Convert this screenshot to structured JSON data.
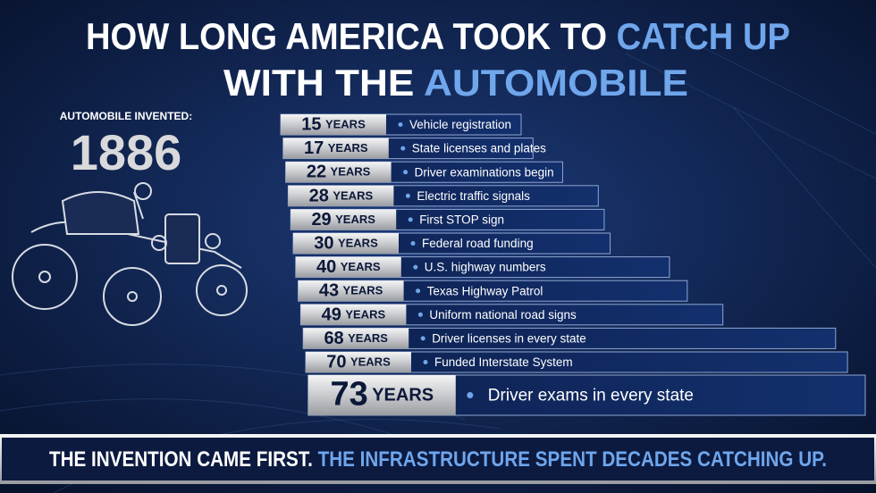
{
  "title": {
    "line1": "HOW LONG AMERICA TOOK TO",
    "line1_highlight": "CATCH UP",
    "line2": "WITH THE",
    "line2_highlight": "AUTOMOBILE"
  },
  "invented": {
    "label": "AUTOMOBILE INVENTED:",
    "year": 1886
  },
  "unit": "YEARS",
  "items": [
    {
      "years": 15,
      "event": "Vehicle registration"
    },
    {
      "years": 17,
      "event": "State licenses and plates"
    },
    {
      "years": 22,
      "event": "Driver examinations begin"
    },
    {
      "years": 28,
      "event": "Electric traffic signals"
    },
    {
      "years": 29,
      "event": "First STOP sign"
    },
    {
      "years": 30,
      "event": "Federal road funding"
    },
    {
      "years": 40,
      "event": "U.S. highway numbers"
    },
    {
      "years": 43,
      "event": "Texas Highway Patrol"
    },
    {
      "years": 49,
      "event": "Uniform national road signs"
    },
    {
      "years": 68,
      "event": "Driver licenses in every state"
    },
    {
      "years": 70,
      "event": "Funded Interstate System"
    },
    {
      "years": 73,
      "event": "Driver exams in every state"
    }
  ],
  "footer": {
    "part1": "THE INVENTION CAME FIRST.",
    "part2": "THE INFRASTRUCTURE SPENT DECADES CATCHING UP."
  }
}
